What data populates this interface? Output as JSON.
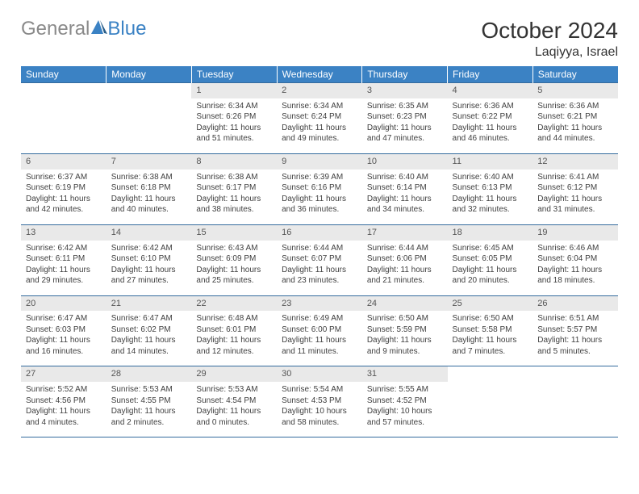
{
  "brand": {
    "part1": "General",
    "part2": "Blue"
  },
  "title": "October 2024",
  "location": "Laqiyya, Israel",
  "colors": {
    "header_bg": "#3b82c4",
    "header_text": "#ffffff",
    "row_border": "#356c9e",
    "daynum_bg": "#e9e9e9",
    "text": "#404040",
    "logo_gray": "#8a8a8a",
    "logo_blue": "#3b82c4"
  },
  "weekdays": [
    "Sunday",
    "Monday",
    "Tuesday",
    "Wednesday",
    "Thursday",
    "Friday",
    "Saturday"
  ],
  "weeks": [
    [
      null,
      null,
      {
        "n": "1",
        "sunrise": "Sunrise: 6:34 AM",
        "sunset": "Sunset: 6:26 PM",
        "day1": "Daylight: 11 hours",
        "day2": "and 51 minutes."
      },
      {
        "n": "2",
        "sunrise": "Sunrise: 6:34 AM",
        "sunset": "Sunset: 6:24 PM",
        "day1": "Daylight: 11 hours",
        "day2": "and 49 minutes."
      },
      {
        "n": "3",
        "sunrise": "Sunrise: 6:35 AM",
        "sunset": "Sunset: 6:23 PM",
        "day1": "Daylight: 11 hours",
        "day2": "and 47 minutes."
      },
      {
        "n": "4",
        "sunrise": "Sunrise: 6:36 AM",
        "sunset": "Sunset: 6:22 PM",
        "day1": "Daylight: 11 hours",
        "day2": "and 46 minutes."
      },
      {
        "n": "5",
        "sunrise": "Sunrise: 6:36 AM",
        "sunset": "Sunset: 6:21 PM",
        "day1": "Daylight: 11 hours",
        "day2": "and 44 minutes."
      }
    ],
    [
      {
        "n": "6",
        "sunrise": "Sunrise: 6:37 AM",
        "sunset": "Sunset: 6:19 PM",
        "day1": "Daylight: 11 hours",
        "day2": "and 42 minutes."
      },
      {
        "n": "7",
        "sunrise": "Sunrise: 6:38 AM",
        "sunset": "Sunset: 6:18 PM",
        "day1": "Daylight: 11 hours",
        "day2": "and 40 minutes."
      },
      {
        "n": "8",
        "sunrise": "Sunrise: 6:38 AM",
        "sunset": "Sunset: 6:17 PM",
        "day1": "Daylight: 11 hours",
        "day2": "and 38 minutes."
      },
      {
        "n": "9",
        "sunrise": "Sunrise: 6:39 AM",
        "sunset": "Sunset: 6:16 PM",
        "day1": "Daylight: 11 hours",
        "day2": "and 36 minutes."
      },
      {
        "n": "10",
        "sunrise": "Sunrise: 6:40 AM",
        "sunset": "Sunset: 6:14 PM",
        "day1": "Daylight: 11 hours",
        "day2": "and 34 minutes."
      },
      {
        "n": "11",
        "sunrise": "Sunrise: 6:40 AM",
        "sunset": "Sunset: 6:13 PM",
        "day1": "Daylight: 11 hours",
        "day2": "and 32 minutes."
      },
      {
        "n": "12",
        "sunrise": "Sunrise: 6:41 AM",
        "sunset": "Sunset: 6:12 PM",
        "day1": "Daylight: 11 hours",
        "day2": "and 31 minutes."
      }
    ],
    [
      {
        "n": "13",
        "sunrise": "Sunrise: 6:42 AM",
        "sunset": "Sunset: 6:11 PM",
        "day1": "Daylight: 11 hours",
        "day2": "and 29 minutes."
      },
      {
        "n": "14",
        "sunrise": "Sunrise: 6:42 AM",
        "sunset": "Sunset: 6:10 PM",
        "day1": "Daylight: 11 hours",
        "day2": "and 27 minutes."
      },
      {
        "n": "15",
        "sunrise": "Sunrise: 6:43 AM",
        "sunset": "Sunset: 6:09 PM",
        "day1": "Daylight: 11 hours",
        "day2": "and 25 minutes."
      },
      {
        "n": "16",
        "sunrise": "Sunrise: 6:44 AM",
        "sunset": "Sunset: 6:07 PM",
        "day1": "Daylight: 11 hours",
        "day2": "and 23 minutes."
      },
      {
        "n": "17",
        "sunrise": "Sunrise: 6:44 AM",
        "sunset": "Sunset: 6:06 PM",
        "day1": "Daylight: 11 hours",
        "day2": "and 21 minutes."
      },
      {
        "n": "18",
        "sunrise": "Sunrise: 6:45 AM",
        "sunset": "Sunset: 6:05 PM",
        "day1": "Daylight: 11 hours",
        "day2": "and 20 minutes."
      },
      {
        "n": "19",
        "sunrise": "Sunrise: 6:46 AM",
        "sunset": "Sunset: 6:04 PM",
        "day1": "Daylight: 11 hours",
        "day2": "and 18 minutes."
      }
    ],
    [
      {
        "n": "20",
        "sunrise": "Sunrise: 6:47 AM",
        "sunset": "Sunset: 6:03 PM",
        "day1": "Daylight: 11 hours",
        "day2": "and 16 minutes."
      },
      {
        "n": "21",
        "sunrise": "Sunrise: 6:47 AM",
        "sunset": "Sunset: 6:02 PM",
        "day1": "Daylight: 11 hours",
        "day2": "and 14 minutes."
      },
      {
        "n": "22",
        "sunrise": "Sunrise: 6:48 AM",
        "sunset": "Sunset: 6:01 PM",
        "day1": "Daylight: 11 hours",
        "day2": "and 12 minutes."
      },
      {
        "n": "23",
        "sunrise": "Sunrise: 6:49 AM",
        "sunset": "Sunset: 6:00 PM",
        "day1": "Daylight: 11 hours",
        "day2": "and 11 minutes."
      },
      {
        "n": "24",
        "sunrise": "Sunrise: 6:50 AM",
        "sunset": "Sunset: 5:59 PM",
        "day1": "Daylight: 11 hours",
        "day2": "and 9 minutes."
      },
      {
        "n": "25",
        "sunrise": "Sunrise: 6:50 AM",
        "sunset": "Sunset: 5:58 PM",
        "day1": "Daylight: 11 hours",
        "day2": "and 7 minutes."
      },
      {
        "n": "26",
        "sunrise": "Sunrise: 6:51 AM",
        "sunset": "Sunset: 5:57 PM",
        "day1": "Daylight: 11 hours",
        "day2": "and 5 minutes."
      }
    ],
    [
      {
        "n": "27",
        "sunrise": "Sunrise: 5:52 AM",
        "sunset": "Sunset: 4:56 PM",
        "day1": "Daylight: 11 hours",
        "day2": "and 4 minutes."
      },
      {
        "n": "28",
        "sunrise": "Sunrise: 5:53 AM",
        "sunset": "Sunset: 4:55 PM",
        "day1": "Daylight: 11 hours",
        "day2": "and 2 minutes."
      },
      {
        "n": "29",
        "sunrise": "Sunrise: 5:53 AM",
        "sunset": "Sunset: 4:54 PM",
        "day1": "Daylight: 11 hours",
        "day2": "and 0 minutes."
      },
      {
        "n": "30",
        "sunrise": "Sunrise: 5:54 AM",
        "sunset": "Sunset: 4:53 PM",
        "day1": "Daylight: 10 hours",
        "day2": "and 58 minutes."
      },
      {
        "n": "31",
        "sunrise": "Sunrise: 5:55 AM",
        "sunset": "Sunset: 4:52 PM",
        "day1": "Daylight: 10 hours",
        "day2": "and 57 minutes."
      },
      null,
      null
    ]
  ]
}
